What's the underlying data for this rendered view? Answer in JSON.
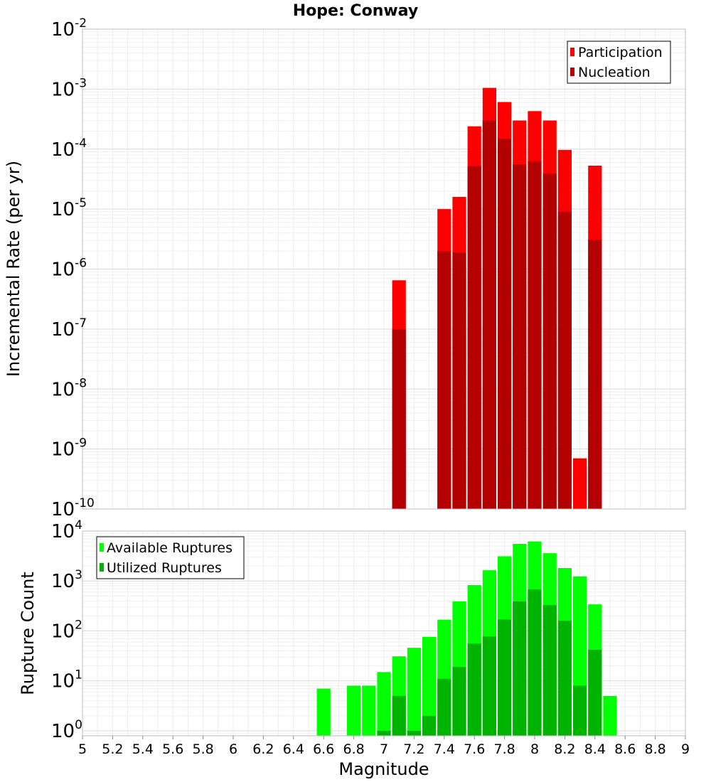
{
  "title": "Hope: Conway",
  "chart_data": [
    {
      "type": "bar",
      "ylabel": "Incremental Rate (per yr)",
      "yscale": "log",
      "ylim_exp": [
        -10,
        -2
      ],
      "xlim": [
        5,
        9
      ],
      "grid": true,
      "legend_position": "top-right",
      "legend": [
        "Participation",
        "Nucleation"
      ],
      "series": [
        {
          "name": "Participation",
          "color": "#ff0000",
          "x": [
            7.1,
            7.4,
            7.5,
            7.6,
            7.7,
            7.8,
            7.9,
            8.0,
            8.1,
            8.2,
            8.3,
            8.4
          ],
          "values": [
            6.5e-07,
            1e-05,
            1.6e-05,
            0.00024,
            0.00105,
            0.00061,
            0.0003,
            0.00043,
            0.0003,
            9.7e-05,
            7e-10,
            5.3e-05
          ]
        },
        {
          "name": "Nucleation",
          "color": "#b30000",
          "x": [
            7.1,
            7.4,
            7.5,
            7.6,
            7.7,
            7.8,
            7.9,
            8.0,
            8.1,
            8.2,
            8.4
          ],
          "values": [
            1e-07,
            2e-06,
            1.9e-06,
            5.2e-05,
            0.0003,
            0.00015,
            5.6e-05,
            6.3e-05,
            3.9e-05,
            9e-06,
            3.1e-06
          ]
        }
      ]
    },
    {
      "type": "bar",
      "ylabel": "Rupture Count",
      "yscale": "log",
      "ylim_exp": [
        -0.1,
        4
      ],
      "xlim": [
        5,
        9
      ],
      "xlabel": "Magnitude",
      "grid": true,
      "legend_position": "top-left",
      "legend": [
        "Available Ruptures",
        "Utilized Ruptures"
      ],
      "xticks": [
        "5",
        "5.2",
        "5.4",
        "5.6",
        "5.8",
        "6",
        "6.2",
        "6.4",
        "6.6",
        "6.8",
        "7",
        "7.2",
        "7.4",
        "7.6",
        "7.8",
        "8",
        "8.2",
        "8.4",
        "8.6",
        "8.8",
        "9"
      ],
      "series": [
        {
          "name": "Available Ruptures",
          "color": "#00ff00",
          "x": [
            6.6,
            6.8,
            6.9,
            7.0,
            7.1,
            7.2,
            7.3,
            7.4,
            7.5,
            7.6,
            7.7,
            7.8,
            7.9,
            8.0,
            8.1,
            8.2,
            8.3,
            8.4,
            8.5
          ],
          "values": [
            7,
            8,
            8,
            15,
            31,
            46,
            76,
            168,
            390,
            830,
            1640,
            3130,
            5550,
            6200,
            3600,
            1820,
            1240,
            340,
            5
          ]
        },
        {
          "name": "Utilized Ruptures",
          "color": "#00b300",
          "x": [
            7.0,
            7.1,
            7.2,
            7.3,
            7.4,
            7.5,
            7.6,
            7.7,
            7.8,
            7.9,
            8.0,
            8.1,
            8.2,
            8.3,
            8.4
          ],
          "values": [
            1,
            5,
            1,
            2,
            11,
            19,
            56,
            78,
            170,
            390,
            680,
            330,
            160,
            8,
            42
          ]
        }
      ]
    }
  ]
}
